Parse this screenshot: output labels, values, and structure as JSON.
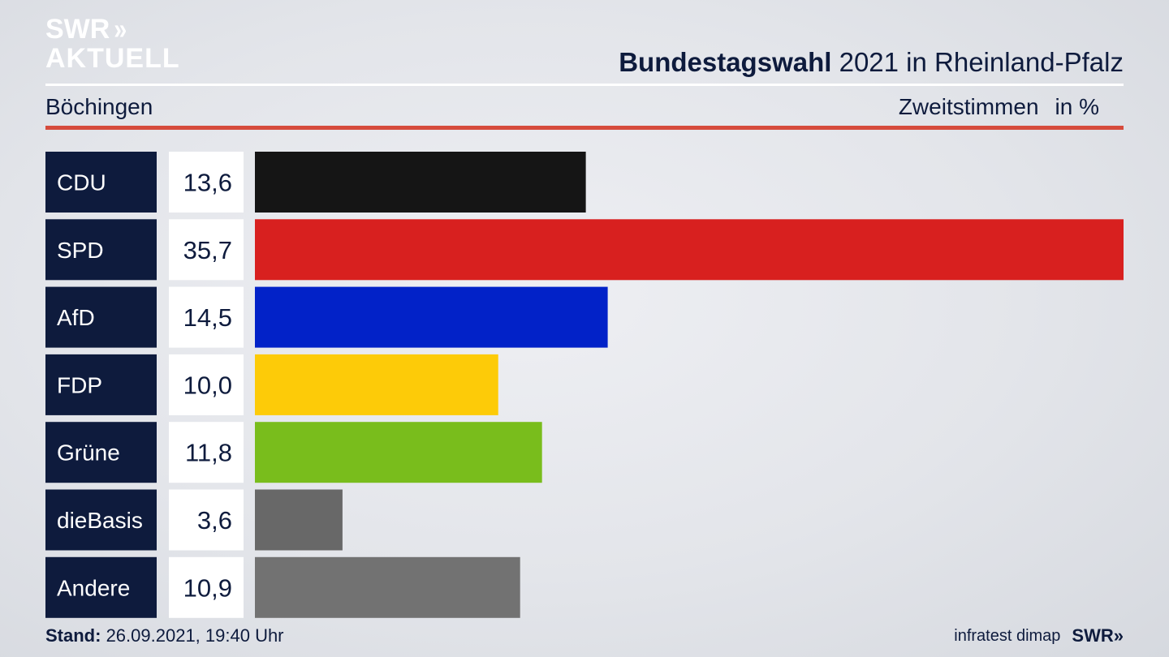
{
  "brand": {
    "line1": "SWR",
    "line2": "AKTUELL"
  },
  "header": {
    "title_bold": "Bundestagswahl",
    "title_rest": " 2021 in Rheinland-Pfalz",
    "location": "Böchingen",
    "measure": "Zweitstimmen",
    "unit": "in %"
  },
  "chart_data": {
    "type": "bar",
    "orientation": "horizontal",
    "categories": [
      "CDU",
      "SPD",
      "AfD",
      "FDP",
      "Grüne",
      "dieBasis",
      "Andere"
    ],
    "values": [
      13.6,
      35.7,
      14.5,
      10.0,
      11.8,
      3.6,
      10.9
    ],
    "value_labels": [
      "13,6",
      "35,7",
      "14,5",
      "10,0",
      "11,8",
      "3,6",
      "10,9"
    ],
    "colors": [
      "#151515",
      "#d8201f",
      "#0222c8",
      "#fdcb08",
      "#79bd1c",
      "#686868",
      "#727272"
    ],
    "xlim": [
      0,
      35.7
    ]
  },
  "colors": {
    "label_box": "#0e1b3d",
    "label_text": "#ffffff",
    "value_box": "#ffffff",
    "text": "#0e1b3d",
    "accent_rule": "#d64b3c"
  },
  "footer": {
    "stand_label": "Stand:",
    "stand_value": " 26.09.2021, 19:40 Uhr",
    "source": "infratest dimap",
    "brand_small": "SWR"
  }
}
